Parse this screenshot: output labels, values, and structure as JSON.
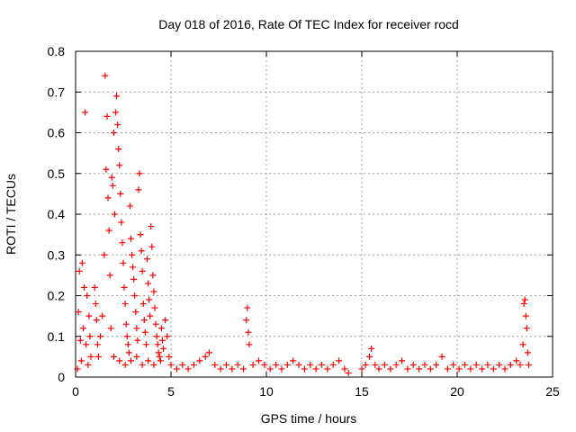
{
  "chart_data": {
    "type": "scatter",
    "title": "Day 018 of 2016, Rate Of TEC Index for receiver rocd",
    "xlabel": "GPS time / hours",
    "ylabel": "ROTI / TECUs",
    "xlim": [
      0,
      25
    ],
    "ylim": [
      0,
      0.8
    ],
    "xticks": [
      "0",
      "5",
      "10",
      "15",
      "20",
      "25"
    ],
    "yticks": [
      "0",
      "0.1",
      "0.2",
      "0.3",
      "0.4",
      "0.5",
      "0.6",
      "0.7",
      "0.8"
    ],
    "grid": true,
    "marker": "+",
    "series": [
      {
        "name": "ROTI",
        "color": "#ff0000",
        "points": [
          [
            0.1,
            0.02
          ],
          [
            0.15,
            0.16
          ],
          [
            0.2,
            0.26
          ],
          [
            0.25,
            0.09
          ],
          [
            0.3,
            0.04
          ],
          [
            0.35,
            0.28
          ],
          [
            0.4,
            0.12
          ],
          [
            0.45,
            0.22
          ],
          [
            0.5,
            0.65
          ],
          [
            0.55,
            0.08
          ],
          [
            0.6,
            0.2
          ],
          [
            0.65,
            0.03
          ],
          [
            0.7,
            0.15
          ],
          [
            0.75,
            0.1
          ],
          [
            0.8,
            0.05
          ],
          [
            1.0,
            0.22
          ],
          [
            1.05,
            0.18
          ],
          [
            1.1,
            0.14
          ],
          [
            1.15,
            0.08
          ],
          [
            1.2,
            0.05
          ],
          [
            1.3,
            0.1
          ],
          [
            1.4,
            0.15
          ],
          [
            1.5,
            0.3
          ],
          [
            1.55,
            0.74
          ],
          [
            1.6,
            0.51
          ],
          [
            1.65,
            0.64
          ],
          [
            1.7,
            0.44
          ],
          [
            1.75,
            0.36
          ],
          [
            1.8,
            0.25
          ],
          [
            1.85,
            0.12
          ],
          [
            1.9,
            0.49
          ],
          [
            1.95,
            0.47
          ],
          [
            2.0,
            0.6
          ],
          [
            2.05,
            0.4
          ],
          [
            2.1,
            0.65
          ],
          [
            2.15,
            0.69
          ],
          [
            2.2,
            0.62
          ],
          [
            2.25,
            0.56
          ],
          [
            2.3,
            0.52
          ],
          [
            2.35,
            0.45
          ],
          [
            2.4,
            0.38
          ],
          [
            2.45,
            0.33
          ],
          [
            2.5,
            0.28
          ],
          [
            2.55,
            0.22
          ],
          [
            2.6,
            0.18
          ],
          [
            2.65,
            0.13
          ],
          [
            2.7,
            0.1
          ],
          [
            2.75,
            0.08
          ],
          [
            2.8,
            0.06
          ],
          [
            2.85,
            0.42
          ],
          [
            2.9,
            0.34
          ],
          [
            2.95,
            0.3
          ],
          [
            3.0,
            0.27
          ],
          [
            3.05,
            0.24
          ],
          [
            3.1,
            0.2
          ],
          [
            3.15,
            0.16
          ],
          [
            3.2,
            0.12
          ],
          [
            3.25,
            0.09
          ],
          [
            3.3,
            0.46
          ],
          [
            3.35,
            0.5
          ],
          [
            3.4,
            0.35
          ],
          [
            3.45,
            0.31
          ],
          [
            3.5,
            0.26
          ],
          [
            3.55,
            0.18
          ],
          [
            3.6,
            0.14
          ],
          [
            3.65,
            0.11
          ],
          [
            3.7,
            0.08
          ],
          [
            3.75,
            0.29
          ],
          [
            3.8,
            0.23
          ],
          [
            3.85,
            0.19
          ],
          [
            3.9,
            0.15
          ],
          [
            3.95,
            0.37
          ],
          [
            4.0,
            0.32
          ],
          [
            4.05,
            0.25
          ],
          [
            4.1,
            0.21
          ],
          [
            4.15,
            0.17
          ],
          [
            4.2,
            0.13
          ],
          [
            4.25,
            0.1
          ],
          [
            4.3,
            0.08
          ],
          [
            4.35,
            0.06
          ],
          [
            4.4,
            0.05
          ],
          [
            4.45,
            0.04
          ],
          [
            4.5,
            0.12
          ],
          [
            4.55,
            0.09
          ],
          [
            4.6,
            0.07
          ],
          [
            4.7,
            0.14
          ],
          [
            4.8,
            0.1
          ],
          [
            4.9,
            0.05
          ],
          [
            2.0,
            0.05
          ],
          [
            2.3,
            0.04
          ],
          [
            2.6,
            0.03
          ],
          [
            2.9,
            0.04
          ],
          [
            3.2,
            0.05
          ],
          [
            3.5,
            0.03
          ],
          [
            3.8,
            0.04
          ],
          [
            4.1,
            0.03
          ],
          [
            5.0,
            0.03
          ],
          [
            5.3,
            0.02
          ],
          [
            5.6,
            0.03
          ],
          [
            5.9,
            0.02
          ],
          [
            6.2,
            0.03
          ],
          [
            6.5,
            0.04
          ],
          [
            6.8,
            0.05
          ],
          [
            7.0,
            0.06
          ],
          [
            7.3,
            0.03
          ],
          [
            7.6,
            0.02
          ],
          [
            7.9,
            0.03
          ],
          [
            8.2,
            0.02
          ],
          [
            8.5,
            0.03
          ],
          [
            8.8,
            0.02
          ],
          [
            8.95,
            0.14
          ],
          [
            9.0,
            0.17
          ],
          [
            9.05,
            0.11
          ],
          [
            9.1,
            0.08
          ],
          [
            9.3,
            0.03
          ],
          [
            9.6,
            0.04
          ],
          [
            9.9,
            0.03
          ],
          [
            10.2,
            0.02
          ],
          [
            10.5,
            0.03
          ],
          [
            10.8,
            0.02
          ],
          [
            11.1,
            0.03
          ],
          [
            11.4,
            0.04
          ],
          [
            11.7,
            0.03
          ],
          [
            12.0,
            0.02
          ],
          [
            12.3,
            0.03
          ],
          [
            12.6,
            0.02
          ],
          [
            12.9,
            0.03
          ],
          [
            13.2,
            0.02
          ],
          [
            13.5,
            0.03
          ],
          [
            13.8,
            0.04
          ],
          [
            14.1,
            0.02
          ],
          [
            14.3,
            0.01
          ],
          [
            15.0,
            0.02
          ],
          [
            15.2,
            0.03
          ],
          [
            15.4,
            0.05
          ],
          [
            15.5,
            0.07
          ],
          [
            15.7,
            0.03
          ],
          [
            15.9,
            0.02
          ],
          [
            16.2,
            0.03
          ],
          [
            16.5,
            0.02
          ],
          [
            16.8,
            0.03
          ],
          [
            17.1,
            0.04
          ],
          [
            17.4,
            0.02
          ],
          [
            17.7,
            0.03
          ],
          [
            18.0,
            0.02
          ],
          [
            18.3,
            0.03
          ],
          [
            18.6,
            0.02
          ],
          [
            18.9,
            0.03
          ],
          [
            19.2,
            0.05
          ],
          [
            19.5,
            0.02
          ],
          [
            19.8,
            0.03
          ],
          [
            20.1,
            0.02
          ],
          [
            20.4,
            0.03
          ],
          [
            20.7,
            0.02
          ],
          [
            21.0,
            0.03
          ],
          [
            21.3,
            0.02
          ],
          [
            21.6,
            0.03
          ],
          [
            21.9,
            0.02
          ],
          [
            22.2,
            0.03
          ],
          [
            22.5,
            0.02
          ],
          [
            22.8,
            0.03
          ],
          [
            23.1,
            0.04
          ],
          [
            23.3,
            0.03
          ],
          [
            23.45,
            0.08
          ],
          [
            23.5,
            0.18
          ],
          [
            23.55,
            0.19
          ],
          [
            23.6,
            0.15
          ],
          [
            23.65,
            0.12
          ],
          [
            23.7,
            0.06
          ],
          [
            23.75,
            0.03
          ]
        ]
      }
    ]
  },
  "colors": {
    "marker": "#ff0000",
    "grid": "#a0a0a0",
    "axis": "#000000"
  }
}
